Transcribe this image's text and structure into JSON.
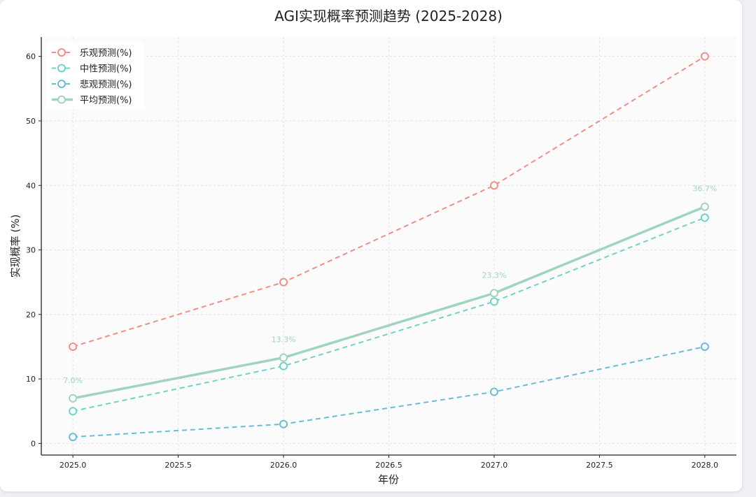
{
  "chart_data": {
    "type": "line",
    "title": "AGI实现概率预测趋势 (2025-2028)",
    "xlabel": "年份",
    "ylabel": "实现概率 (%)",
    "x": [
      2025,
      2026,
      2027,
      2028
    ],
    "xlim": [
      2024.85,
      2028.15
    ],
    "ylim": [
      -1.8,
      63
    ],
    "x_ticks": [
      "2025.0",
      "2025.5",
      "2026.0",
      "2026.5",
      "2027.0",
      "2027.5",
      "2028.0"
    ],
    "x_tick_values": [
      2025.0,
      2025.5,
      2026.0,
      2026.5,
      2027.0,
      2027.5,
      2028.0
    ],
    "y_ticks": [
      0,
      10,
      20,
      30,
      40,
      50,
      60
    ],
    "grid": true,
    "legend_position": "upper-left",
    "series": [
      {
        "name": "乐观预测(%)",
        "values": [
          15,
          25,
          40,
          60
        ],
        "color": "#f28e86",
        "style": "dashed"
      },
      {
        "name": "中性预测(%)",
        "values": [
          5,
          12,
          22,
          35
        ],
        "color": "#6fd3c8",
        "style": "dashed"
      },
      {
        "name": "悲观预测(%)",
        "values": [
          1,
          3,
          8,
          15
        ],
        "color": "#6bbcd6",
        "style": "dashed"
      },
      {
        "name": "平均预测(%)",
        "values": [
          7.0,
          13.3,
          23.3,
          36.7
        ],
        "color": "#9fd5bf",
        "style": "solid"
      }
    ],
    "annotations": [
      "7.0%",
      "13.3%",
      "23.3%",
      "36.7%"
    ],
    "annotation_color": "#9fd5bf"
  }
}
